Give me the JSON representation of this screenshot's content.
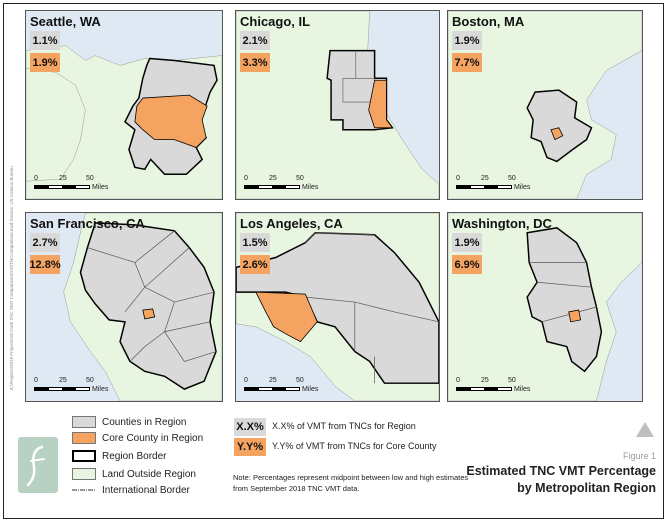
{
  "panels": [
    {
      "id": "seattle",
      "title": "Seattle, WA",
      "region_pct": "1.1%",
      "core_pct": "1.9%"
    },
    {
      "id": "chicago",
      "title": "Chicago, IL",
      "region_pct": "2.1%",
      "core_pct": "3.3%"
    },
    {
      "id": "boston",
      "title": "Boston, MA",
      "region_pct": "1.9%",
      "core_pct": "7.7%"
    },
    {
      "id": "sanfrancisco",
      "title": "San Francisco, CA",
      "region_pct": "2.7%",
      "core_pct": "12.8%"
    },
    {
      "id": "losangeles",
      "title": "Los Angeles, CA",
      "region_pct": "1.5%",
      "core_pct": "2.6%"
    },
    {
      "id": "washington",
      "title": "Washington, DC",
      "region_pct": "1.9%",
      "core_pct": "6.9%"
    }
  ],
  "scale": {
    "ticks": [
      "0",
      "25",
      "50"
    ],
    "unit": "Miles"
  },
  "credit": "K:\\Projects\\2018 Projects\\18-2166 TNC VMT Comparison\\GIS\\TNCcomparison.mxd     Source: US Census Bureau",
  "legend": {
    "counties_in_region": "Counties in Region",
    "core_county": "Core County in Region",
    "region_border": "Region Border",
    "land_outside": "Land Outside Region",
    "intl_border": "International Border"
  },
  "codes": [
    {
      "code": "X.X%",
      "desc": "X.X% of VMT from TNCs for Region"
    },
    {
      "code": "Y.Y%",
      "desc": "Y.Y% of VMT from TNCs for Core County"
    }
  ],
  "note": "Note: Percentages represent midpoint between low and high estimates from September 2018 TNC VMT data.",
  "figure_label": "Figure 1",
  "figure_title_line1": "Estimated TNC VMT Percentage",
  "figure_title_line2": "by Metropolitan Region",
  "colors": {
    "water": "#dfe9f3",
    "land": "#e8f5e0",
    "county": "#d9d9d9",
    "core": "#f4a460",
    "border": "#000000"
  }
}
